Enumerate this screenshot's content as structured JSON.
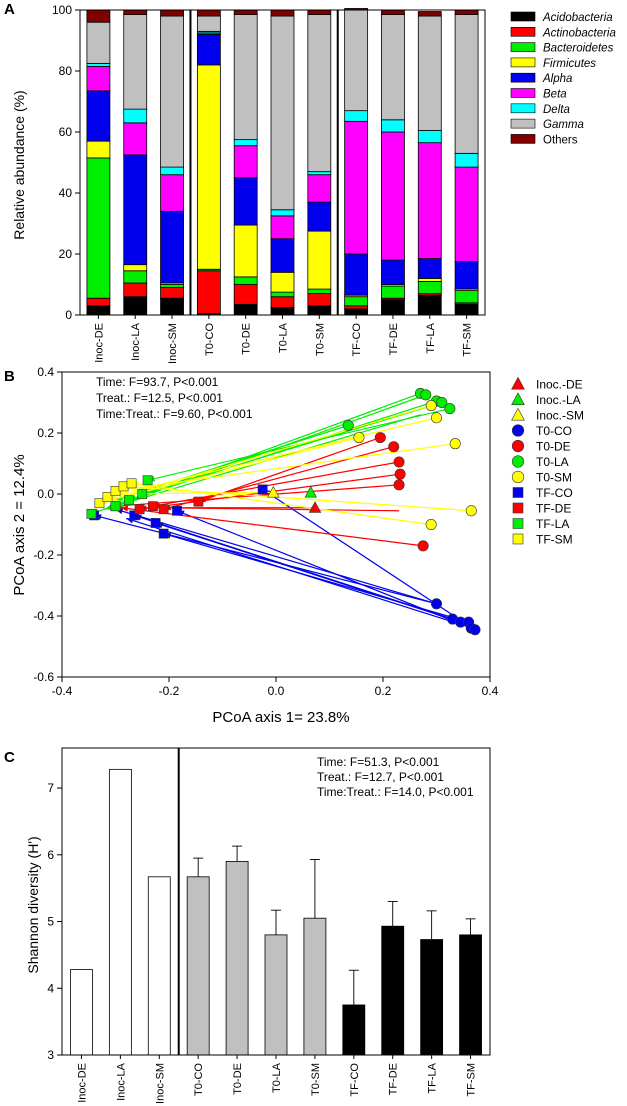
{
  "panels": {
    "a": "A",
    "b": "B",
    "c": "C"
  },
  "colors": {
    "Acidobacteria": "#000000",
    "Actinobacteria": "#ff0000",
    "Bacteroidetes": "#00ee00",
    "Firmicutes": "#ffff00",
    "Alpha": "#0000ee",
    "Beta": "#ff00ff",
    "Delta": "#00ffff",
    "Gamma": "#c0c0c0",
    "Others": "#800000",
    "inoc_bar": "#ffffff",
    "t0_bar": "#c0c0c0",
    "tf_bar": "#000000"
  },
  "chart_data": [
    {
      "id": "A",
      "type": "bar",
      "stacked": true,
      "ylabel": "Relative abundance (%)",
      "ylim": [
        0,
        100
      ],
      "yticks": [
        0,
        20,
        40,
        60,
        80,
        100
      ],
      "categories": [
        "Inoc-DE",
        "Inoc-LA",
        "Inoc-SM",
        "T0-CO",
        "T0-DE",
        "T0-LA",
        "T0-SM",
        "TF-CO",
        "TF-DE",
        "TF-LA",
        "TF-SM"
      ],
      "group_separators_after": [
        "Inoc-SM",
        "T0-SM"
      ],
      "legend_position": "right",
      "series": [
        {
          "name": "Acidobacteria",
          "values": [
            3,
            6,
            5.5,
            0.5,
            3.5,
            2.5,
            3,
            2,
            5,
            6.5,
            3.5
          ]
        },
        {
          "name": "Actinobacteria",
          "values": [
            2.5,
            4.5,
            3.5,
            14,
            6.5,
            3.5,
            4,
            1,
            0.5,
            0.5,
            0.5
          ]
        },
        {
          "name": "Bacteroidetes",
          "values": [
            46,
            4,
            1,
            0.5,
            2.5,
            1.5,
            1.5,
            3,
            4,
            4,
            4
          ]
        },
        {
          "name": "Firmicutes",
          "values": [
            5.5,
            2,
            0.5,
            67,
            17,
            6.5,
            19,
            0.5,
            0.5,
            1,
            0.5
          ]
        },
        {
          "name": "Alpha",
          "values": [
            16.5,
            36,
            23.5,
            10,
            15.5,
            11,
            9.5,
            13.5,
            8,
            6.5,
            9
          ]
        },
        {
          "name": "Beta",
          "values": [
            8,
            10.5,
            12,
            0.5,
            10.5,
            7.5,
            9,
            43.5,
            42,
            38,
            31
          ]
        },
        {
          "name": "Delta",
          "values": [
            1,
            4.5,
            2.5,
            0.5,
            2,
            2,
            1,
            3.5,
            4,
            4,
            4.5
          ]
        },
        {
          "name": "Gamma",
          "values": [
            13.5,
            31,
            49.5,
            5,
            41,
            63.5,
            51.5,
            33,
            34.5,
            37.5,
            45.5
          ]
        },
        {
          "name": "Others",
          "values": [
            4,
            1.5,
            2,
            2,
            1.5,
            2,
            1.5,
            0.5,
            1.5,
            1.5,
            1.5
          ]
        }
      ]
    },
    {
      "id": "B",
      "type": "scatter",
      "xlabel": "PCoA axis 1= 23.8%",
      "ylabel": "PCoA axis 2 = 12.4%",
      "xlim": [
        -0.4,
        0.4
      ],
      "ylim": [
        -0.6,
        0.4
      ],
      "xticks": [
        -0.4,
        -0.2,
        0.0,
        0.2,
        0.4
      ],
      "yticks": [
        -0.6,
        -0.4,
        -0.2,
        0.0,
        0.2,
        0.4
      ],
      "tick_labels_x": [
        "-0.4",
        "-0.2",
        "0.0",
        "0.2",
        "0.4"
      ],
      "tick_labels_y": [
        "-0.6",
        "-0.4",
        "-0.2",
        "0.0",
        "0.2",
        "0.4"
      ],
      "annotations": [
        "Time: F=93.7, P<0.001",
        "Treat.: F=12.5, P<0.001",
        "Time:Treat.: F=9.60, P<0.001"
      ],
      "legend_position": "right",
      "legend": [
        {
          "label": "Inoc.-DE",
          "shape": "triangle",
          "color": "#ff0000"
        },
        {
          "label": "Inoc.-LA",
          "shape": "triangle",
          "color": "#00ee00"
        },
        {
          "label": "Inoc.-SM",
          "shape": "triangle",
          "color": "#ffff00"
        },
        {
          "label": "T0-CO",
          "shape": "circle",
          "color": "#0000ee"
        },
        {
          "label": "T0-DE",
          "shape": "circle",
          "color": "#ff0000"
        },
        {
          "label": "T0-LA",
          "shape": "circle",
          "color": "#00ee00"
        },
        {
          "label": "T0-SM",
          "shape": "circle",
          "color": "#ffff00"
        },
        {
          "label": "TF-CO",
          "shape": "square",
          "color": "#0000ee"
        },
        {
          "label": "TF-DE",
          "shape": "square",
          "color": "#ff0000"
        },
        {
          "label": "TF-LA",
          "shape": "square",
          "color": "#00ee00"
        },
        {
          "label": "TF-SM",
          "shape": "square",
          "color": "#ffff00"
        }
      ],
      "points": [
        {
          "group": "Inoc.-DE",
          "x": 0.073,
          "y": -0.045
        },
        {
          "group": "Inoc.-LA",
          "x": 0.065,
          "y": 0.005
        },
        {
          "group": "Inoc.-SM",
          "x": -0.005,
          "y": 0.005
        },
        {
          "group": "T0-CO",
          "x": 0.3,
          "y": -0.36
        },
        {
          "group": "T0-CO",
          "x": 0.33,
          "y": -0.41
        },
        {
          "group": "T0-CO",
          "x": 0.345,
          "y": -0.42
        },
        {
          "group": "T0-CO",
          "x": 0.36,
          "y": -0.42
        },
        {
          "group": "T0-CO",
          "x": 0.365,
          "y": -0.44
        },
        {
          "group": "T0-CO",
          "x": 0.372,
          "y": -0.445
        },
        {
          "group": "T0-DE",
          "x": 0.23,
          "y": 0.03
        },
        {
          "group": "T0-DE",
          "x": 0.232,
          "y": 0.065
        },
        {
          "group": "T0-DE",
          "x": 0.23,
          "y": 0.105
        },
        {
          "group": "T0-DE",
          "x": 0.22,
          "y": 0.155
        },
        {
          "group": "T0-DE",
          "x": 0.195,
          "y": 0.185
        },
        {
          "group": "T0-DE",
          "x": 0.275,
          "y": -0.17
        },
        {
          "group": "T0-LA",
          "x": 0.27,
          "y": 0.33
        },
        {
          "group": "T0-LA",
          "x": 0.28,
          "y": 0.325
        },
        {
          "group": "T0-LA",
          "x": 0.3,
          "y": 0.305
        },
        {
          "group": "T0-LA",
          "x": 0.31,
          "y": 0.3
        },
        {
          "group": "T0-LA",
          "x": 0.325,
          "y": 0.28
        },
        {
          "group": "T0-LA",
          "x": 0.135,
          "y": 0.225
        },
        {
          "group": "T0-SM",
          "x": 0.29,
          "y": 0.29
        },
        {
          "group": "T0-SM",
          "x": 0.3,
          "y": 0.25
        },
        {
          "group": "T0-SM",
          "x": 0.335,
          "y": 0.165
        },
        {
          "group": "T0-SM",
          "x": 0.365,
          "y": -0.055
        },
        {
          "group": "T0-SM",
          "x": 0.29,
          "y": -0.1
        },
        {
          "group": "T0-SM",
          "x": 0.155,
          "y": 0.185
        },
        {
          "group": "TF-CO",
          "x": -0.34,
          "y": -0.07
        },
        {
          "group": "TF-CO",
          "x": -0.265,
          "y": -0.07
        },
        {
          "group": "TF-CO",
          "x": -0.225,
          "y": -0.095
        },
        {
          "group": "TF-CO",
          "x": -0.21,
          "y": -0.13
        },
        {
          "group": "TF-CO",
          "x": -0.185,
          "y": -0.055
        },
        {
          "group": "TF-CO",
          "x": -0.025,
          "y": 0.015
        },
        {
          "group": "TF-DE",
          "x": -0.3,
          "y": -0.04
        },
        {
          "group": "TF-DE",
          "x": -0.255,
          "y": -0.05
        },
        {
          "group": "TF-DE",
          "x": -0.23,
          "y": -0.04
        },
        {
          "group": "TF-DE",
          "x": -0.21,
          "y": -0.05
        },
        {
          "group": "TF-DE",
          "x": -0.145,
          "y": -0.025
        },
        {
          "group": "TF-LA",
          "x": -0.345,
          "y": -0.065
        },
        {
          "group": "TF-LA",
          "x": -0.3,
          "y": -0.04
        },
        {
          "group": "TF-LA",
          "x": -0.275,
          "y": -0.02
        },
        {
          "group": "TF-LA",
          "x": -0.25,
          "y": 0.0
        },
        {
          "group": "TF-LA",
          "x": -0.24,
          "y": 0.045
        },
        {
          "group": "TF-SM",
          "x": -0.33,
          "y": -0.03
        },
        {
          "group": "TF-SM",
          "x": -0.315,
          "y": -0.01
        },
        {
          "group": "TF-SM",
          "x": -0.3,
          "y": 0.01
        },
        {
          "group": "TF-SM",
          "x": -0.285,
          "y": 0.025
        },
        {
          "group": "TF-SM",
          "x": -0.27,
          "y": 0.035
        }
      ],
      "arrows": [
        {
          "color": "#0000ee",
          "from": [
            0.3,
            -0.36
          ],
          "to": [
            -0.34,
            -0.07
          ]
        },
        {
          "color": "#0000ee",
          "from": [
            0.33,
            -0.41
          ],
          "to": [
            -0.265,
            -0.07
          ]
        },
        {
          "color": "#0000ee",
          "from": [
            0.345,
            -0.42
          ],
          "to": [
            -0.225,
            -0.095
          ]
        },
        {
          "color": "#0000ee",
          "from": [
            0.36,
            -0.42
          ],
          "to": [
            -0.21,
            -0.13
          ]
        },
        {
          "color": "#0000ee",
          "from": [
            0.365,
            -0.44
          ],
          "to": [
            -0.185,
            -0.055
          ]
        },
        {
          "color": "#0000ee",
          "from": [
            0.372,
            -0.445
          ],
          "to": [
            -0.025,
            0.015
          ]
        },
        {
          "color": "#0000ee",
          "from": [
            0.3,
            -0.36
          ],
          "to": [
            -0.3,
            -0.05
          ]
        },
        {
          "color": "#0000ee",
          "from": [
            0.35,
            -0.43
          ],
          "to": [
            -0.28,
            -0.08
          ]
        },
        {
          "color": "#ff0000",
          "from": [
            0.23,
            0.03
          ],
          "to": [
            -0.3,
            -0.04
          ]
        },
        {
          "color": "#ff0000",
          "from": [
            0.232,
            0.065
          ],
          "to": [
            -0.255,
            -0.05
          ]
        },
        {
          "color": "#ff0000",
          "from": [
            0.23,
            0.105
          ],
          "to": [
            -0.23,
            -0.04
          ]
        },
        {
          "color": "#ff0000",
          "from": [
            0.22,
            0.155
          ],
          "to": [
            -0.21,
            -0.05
          ]
        },
        {
          "color": "#ff0000",
          "from": [
            0.195,
            0.185
          ],
          "to": [
            -0.145,
            -0.025
          ]
        },
        {
          "color": "#ff0000",
          "from": [
            0.275,
            -0.17
          ],
          "to": [
            -0.29,
            -0.045
          ]
        },
        {
          "color": "#ff0000",
          "from": [
            0.23,
            -0.055
          ],
          "to": [
            -0.22,
            -0.045
          ]
        },
        {
          "color": "#ff0000",
          "from": [
            0.073,
            -0.045
          ],
          "to": [
            -0.26,
            -0.045
          ]
        },
        {
          "color": "#00ee00",
          "from": [
            0.27,
            0.33
          ],
          "to": [
            -0.345,
            -0.065
          ]
        },
        {
          "color": "#00ee00",
          "from": [
            0.28,
            0.325
          ],
          "to": [
            -0.3,
            -0.04
          ]
        },
        {
          "color": "#00ee00",
          "from": [
            0.3,
            0.305
          ],
          "to": [
            -0.275,
            -0.02
          ]
        },
        {
          "color": "#00ee00",
          "from": [
            0.31,
            0.3
          ],
          "to": [
            -0.25,
            0.0
          ]
        },
        {
          "color": "#00ee00",
          "from": [
            0.325,
            0.28
          ],
          "to": [
            -0.24,
            0.045
          ]
        },
        {
          "color": "#00ee00",
          "from": [
            0.135,
            0.225
          ],
          "to": [
            -0.3,
            -0.02
          ]
        },
        {
          "color": "#00ee00",
          "from": [
            0.27,
            0.26
          ],
          "to": [
            -0.32,
            -0.05
          ]
        },
        {
          "color": "#ffff00",
          "from": [
            0.29,
            0.29
          ],
          "to": [
            -0.33,
            -0.03
          ]
        },
        {
          "color": "#ffff00",
          "from": [
            0.3,
            0.25
          ],
          "to": [
            -0.315,
            -0.01
          ]
        },
        {
          "color": "#ffff00",
          "from": [
            0.335,
            0.165
          ],
          "to": [
            -0.3,
            0.01
          ]
        },
        {
          "color": "#ffff00",
          "from": [
            0.365,
            -0.055
          ],
          "to": [
            -0.285,
            0.025
          ]
        },
        {
          "color": "#ffff00",
          "from": [
            0.29,
            -0.1
          ],
          "to": [
            -0.27,
            0.035
          ]
        },
        {
          "color": "#ffff00",
          "from": [
            0.155,
            0.185
          ],
          "to": [
            -0.31,
            -0.02
          ]
        },
        {
          "color": "#ffff00",
          "from": [
            -0.005,
            0.005
          ],
          "to": [
            -0.3,
            0.0
          ]
        }
      ]
    },
    {
      "id": "C",
      "type": "bar",
      "ylabel": "Shannon diversity (H')",
      "ylim": [
        3,
        7.6
      ],
      "yticks": [
        3,
        4,
        5,
        6,
        7
      ],
      "categories": [
        "Inoc-DE",
        "Inoc-LA",
        "Inoc-SM",
        "T0-CO",
        "T0-DE",
        "T0-LA",
        "T0-SM",
        "TF-CO",
        "TF-DE",
        "TF-LA",
        "TF-SM"
      ],
      "values": [
        4.28,
        7.28,
        5.67,
        5.67,
        5.9,
        4.8,
        5.05,
        3.75,
        4.93,
        4.73,
        4.8
      ],
      "errors": [
        0,
        0,
        0,
        0.28,
        0.23,
        0.37,
        0.88,
        0.52,
        0.37,
        0.43,
        0.24
      ],
      "group_separators_after": [
        "Inoc-SM"
      ],
      "annotations": [
        "Time: F=51.3, P<0.001",
        "Treat.: F=12.7, P<0.001",
        "Time:Treat.: F=14.0, P<0.001"
      ]
    }
  ]
}
